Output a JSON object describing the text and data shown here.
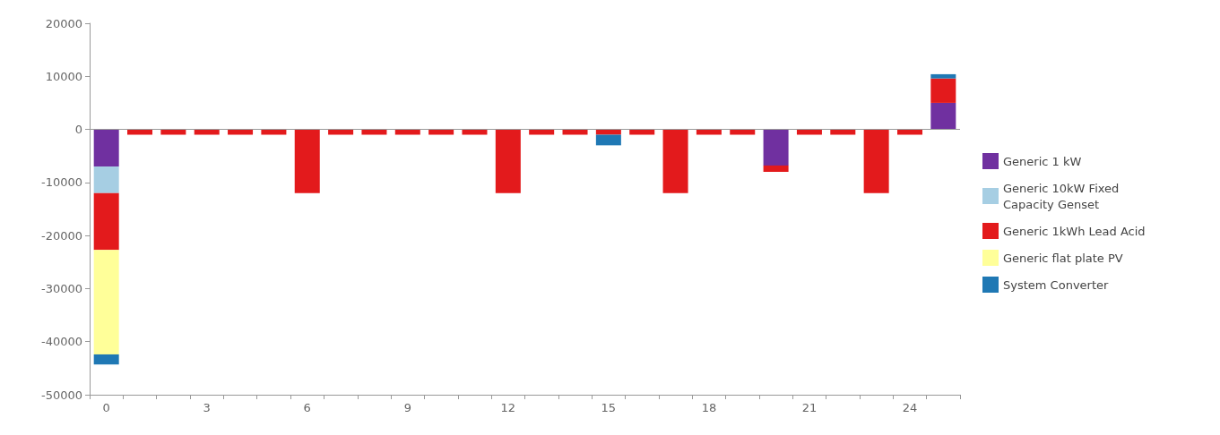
{
  "chart_data": {
    "type": "bar",
    "stacked": true,
    "categories": [
      "0",
      null,
      null,
      "3",
      null,
      null,
      "6",
      null,
      null,
      "9",
      null,
      null,
      "12",
      null,
      null,
      "15",
      null,
      null,
      "18",
      null,
      null,
      "21",
      null,
      null,
      "24",
      null
    ],
    "series": [
      {
        "name": "Generic 1 kW",
        "color": "#7030a0",
        "values": [
          -7000,
          0,
          0,
          0,
          0,
          0,
          0,
          0,
          0,
          0,
          0,
          0,
          0,
          0,
          0,
          0,
          0,
          0,
          0,
          0,
          -6800,
          0,
          0,
          0,
          0,
          5000
        ]
      },
      {
        "name": "Generic 10kW Fixed Capacity Genset",
        "color": "#a6cee3",
        "values": [
          -5000,
          0,
          0,
          0,
          0,
          0,
          0,
          0,
          0,
          0,
          0,
          0,
          0,
          0,
          0,
          0,
          0,
          0,
          0,
          0,
          0,
          0,
          0,
          0,
          0,
          0
        ]
      },
      {
        "name": "Generic 1kWh Lead Acid",
        "color": "#e31a1c",
        "values": [
          -10700,
          -1000,
          -1000,
          -1000,
          -1000,
          -1000,
          -12000,
          -1000,
          -1000,
          -1000,
          -1000,
          -1000,
          -12000,
          -1000,
          -1000,
          -1000,
          -1000,
          -12000,
          -1000,
          -1000,
          -1200,
          -1000,
          -1000,
          -12000,
          -1000,
          4600
        ]
      },
      {
        "name": "Generic flat plate PV",
        "color": "#ffff99",
        "values": [
          -19700,
          0,
          0,
          0,
          0,
          0,
          0,
          0,
          0,
          0,
          0,
          0,
          0,
          0,
          0,
          0,
          0,
          0,
          0,
          0,
          0,
          0,
          0,
          0,
          0,
          0
        ]
      },
      {
        "name": "System Converter",
        "color": "#1f78b4",
        "values": [
          -1900,
          0,
          0,
          0,
          0,
          0,
          0,
          0,
          0,
          0,
          0,
          0,
          0,
          0,
          0,
          -2000,
          0,
          0,
          0,
          0,
          0,
          0,
          0,
          0,
          0,
          800
        ]
      }
    ],
    "ylim": [
      -50000,
      20000
    ],
    "yticks": [
      -50000,
      -40000,
      -30000,
      -20000,
      -10000,
      0,
      10000,
      20000
    ],
    "grid": false,
    "legend": "right",
    "ref_lines": [
      {
        "axis": "y",
        "value": 0,
        "color": "#999999"
      }
    ]
  }
}
